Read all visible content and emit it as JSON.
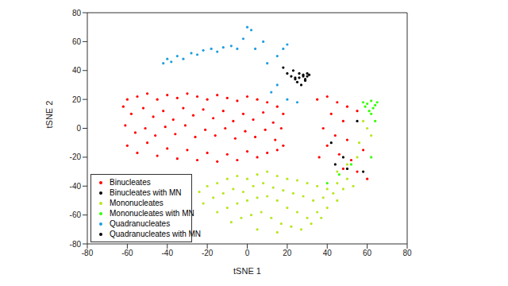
{
  "chart_data": {
    "type": "scatter",
    "xlabel": "tSNE 1",
    "ylabel": "tSNE 2",
    "xlim": [
      -80,
      80
    ],
    "ylim": [
      -80,
      80
    ],
    "xticks": [
      -80,
      -60,
      -40,
      -20,
      0,
      20,
      40,
      60,
      80
    ],
    "yticks": [
      -80,
      -60,
      -40,
      -20,
      0,
      20,
      40,
      60,
      80
    ],
    "grid": false,
    "legend": "lower left",
    "marker": "dot",
    "series": [
      {
        "name": "Binucleates",
        "color": "#ff0000",
        "values": [
          [
            -60,
            20
          ],
          [
            -55,
            22
          ],
          [
            -50,
            24
          ],
          [
            -45,
            20
          ],
          [
            -40,
            23
          ],
          [
            -35,
            21
          ],
          [
            -30,
            24
          ],
          [
            -25,
            22
          ],
          [
            -20,
            20
          ],
          [
            -15,
            23
          ],
          [
            -10,
            21
          ],
          [
            -5,
            19
          ],
          [
            0,
            22
          ],
          [
            5,
            20
          ],
          [
            10,
            18
          ],
          [
            15,
            15
          ],
          [
            18,
            10
          ],
          [
            -62,
            15
          ],
          [
            -58,
            10
          ],
          [
            -52,
            14
          ],
          [
            -47,
            8
          ],
          [
            -42,
            12
          ],
          [
            -37,
            6
          ],
          [
            -32,
            14
          ],
          [
            -27,
            9
          ],
          [
            -22,
            13
          ],
          [
            -17,
            7
          ],
          [
            -12,
            12
          ],
          [
            -7,
            5
          ],
          [
            -2,
            10
          ],
          [
            3,
            6
          ],
          [
            8,
            11
          ],
          [
            13,
            4
          ],
          [
            17,
            0
          ],
          [
            -61,
            2
          ],
          [
            -56,
            -3
          ],
          [
            -51,
            0
          ],
          [
            -46,
            -5
          ],
          [
            -41,
            1
          ],
          [
            -36,
            -4
          ],
          [
            -31,
            2
          ],
          [
            -26,
            -6
          ],
          [
            -21,
            -1
          ],
          [
            -16,
            -5
          ],
          [
            -11,
            0
          ],
          [
            -6,
            -7
          ],
          [
            -1,
            -2
          ],
          [
            4,
            -6
          ],
          [
            9,
            -1
          ],
          [
            14,
            -8
          ],
          [
            18,
            -12
          ],
          [
            -60,
            -12
          ],
          [
            -55,
            -17
          ],
          [
            -50,
            -10
          ],
          [
            -45,
            -19
          ],
          [
            -40,
            -14
          ],
          [
            -35,
            -21
          ],
          [
            -30,
            -15
          ],
          [
            -25,
            -22
          ],
          [
            -20,
            -17
          ],
          [
            -15,
            -23
          ],
          [
            -10,
            -18
          ],
          [
            -5,
            -22
          ],
          [
            0,
            -16
          ],
          [
            5,
            -20
          ],
          [
            10,
            -17
          ],
          [
            15,
            -15
          ],
          [
            35,
            20
          ],
          [
            40,
            22
          ],
          [
            45,
            18
          ],
          [
            50,
            15
          ],
          [
            55,
            12
          ],
          [
            42,
            10
          ],
          [
            48,
            5
          ],
          [
            38,
            0
          ],
          [
            44,
            -5
          ],
          [
            50,
            -8
          ],
          [
            40,
            -12
          ],
          [
            46,
            -18
          ],
          [
            52,
            -22
          ],
          [
            55,
            -30
          ],
          [
            48,
            -28
          ],
          [
            58,
            -15
          ],
          [
            36,
            -20
          ],
          [
            60,
            -35
          ]
        ]
      },
      {
        "name": "Binucleates with MN",
        "color": "#000000",
        "values": [
          [
            20,
            38
          ],
          [
            22,
            36
          ],
          [
            24,
            34
          ],
          [
            26,
            35
          ],
          [
            28,
            37
          ],
          [
            30,
            36
          ],
          [
            25,
            32
          ],
          [
            27,
            30
          ],
          [
            23,
            40
          ],
          [
            29,
            33
          ],
          [
            18,
            42
          ],
          [
            30,
            38
          ],
          [
            42,
            -10
          ],
          [
            48,
            -20
          ],
          [
            50,
            -28
          ],
          [
            55,
            5
          ],
          [
            44,
            -25
          ],
          [
            58,
            -30
          ]
        ]
      },
      {
        "name": "Mononucleates",
        "color": "#b8e61e",
        "values": [
          [
            -24,
            -44
          ],
          [
            -20,
            -40
          ],
          [
            -15,
            -38
          ],
          [
            -10,
            -35
          ],
          [
            -5,
            -33
          ],
          [
            0,
            -35
          ],
          [
            5,
            -32
          ],
          [
            10,
            -30
          ],
          [
            15,
            -33
          ],
          [
            20,
            -35
          ],
          [
            25,
            -36
          ],
          [
            30,
            -38
          ],
          [
            35,
            -40
          ],
          [
            40,
            -42
          ],
          [
            45,
            -38
          ],
          [
            50,
            -35
          ],
          [
            -22,
            -52
          ],
          [
            -17,
            -48
          ],
          [
            -12,
            -45
          ],
          [
            -7,
            -42
          ],
          [
            -2,
            -44
          ],
          [
            3,
            -40
          ],
          [
            8,
            -38
          ],
          [
            13,
            -41
          ],
          [
            18,
            -43
          ],
          [
            23,
            -45
          ],
          [
            28,
            -47
          ],
          [
            33,
            -50
          ],
          [
            38,
            -48
          ],
          [
            43,
            -45
          ],
          [
            48,
            -42
          ],
          [
            53,
            -40
          ],
          [
            -15,
            -58
          ],
          [
            -10,
            -55
          ],
          [
            -5,
            -52
          ],
          [
            0,
            -50
          ],
          [
            5,
            -48
          ],
          [
            10,
            -47
          ],
          [
            15,
            -50
          ],
          [
            20,
            -55
          ],
          [
            25,
            -58
          ],
          [
            30,
            -62
          ],
          [
            35,
            -58
          ],
          [
            40,
            -55
          ],
          [
            45,
            -50
          ],
          [
            -8,
            -65
          ],
          [
            -3,
            -62
          ],
          [
            2,
            -60
          ],
          [
            7,
            -58
          ],
          [
            12,
            -62
          ],
          [
            17,
            -66
          ],
          [
            22,
            -68
          ],
          [
            27,
            -70
          ],
          [
            32,
            -66
          ],
          [
            37,
            -62
          ],
          [
            5,
            -70
          ],
          [
            15,
            -72
          ],
          [
            58,
            5
          ],
          [
            60,
            0
          ],
          [
            62,
            -5
          ],
          [
            56,
            -10
          ],
          [
            50,
            -25
          ],
          [
            45,
            -30
          ],
          [
            55,
            -20
          ]
        ]
      },
      {
        "name": "Mononucleates with MN",
        "color": "#33ff00",
        "values": [
          [
            58,
            18
          ],
          [
            60,
            17
          ],
          [
            62,
            19
          ],
          [
            64,
            16
          ],
          [
            63,
            14
          ],
          [
            61,
            12
          ],
          [
            65,
            18
          ],
          [
            59,
            15
          ],
          [
            62,
            10
          ],
          [
            64,
            5
          ],
          [
            52,
            -25
          ],
          [
            46,
            -32
          ],
          [
            40,
            -38
          ],
          [
            62,
            -20
          ]
        ]
      },
      {
        "name": "Quadranucleates",
        "color": "#1f9fe0",
        "values": [
          [
            -42,
            45
          ],
          [
            -40,
            48
          ],
          [
            -38,
            46
          ],
          [
            -35,
            50
          ],
          [
            -32,
            48
          ],
          [
            -28,
            52
          ],
          [
            -25,
            51
          ],
          [
            -22,
            54
          ],
          [
            -18,
            55
          ],
          [
            -15,
            53
          ],
          [
            -12,
            56
          ],
          [
            -8,
            57
          ],
          [
            -5,
            55
          ],
          [
            0,
            70
          ],
          [
            2,
            68
          ],
          [
            -2,
            62
          ],
          [
            4,
            55
          ],
          [
            8,
            60
          ],
          [
            10,
            45
          ],
          [
            15,
            50
          ],
          [
            18,
            55
          ],
          [
            20,
            58
          ],
          [
            12,
            25
          ],
          [
            20,
            20
          ],
          [
            25,
            18
          ],
          [
            15,
            30
          ]
        ]
      },
      {
        "name": "Quadranucleates with MN",
        "color": "#000000",
        "values": [
          [
            26,
            38
          ],
          [
            28,
            36
          ],
          [
            31,
            37
          ],
          [
            29,
            34
          ],
          [
            24,
            35
          ]
        ]
      }
    ]
  }
}
